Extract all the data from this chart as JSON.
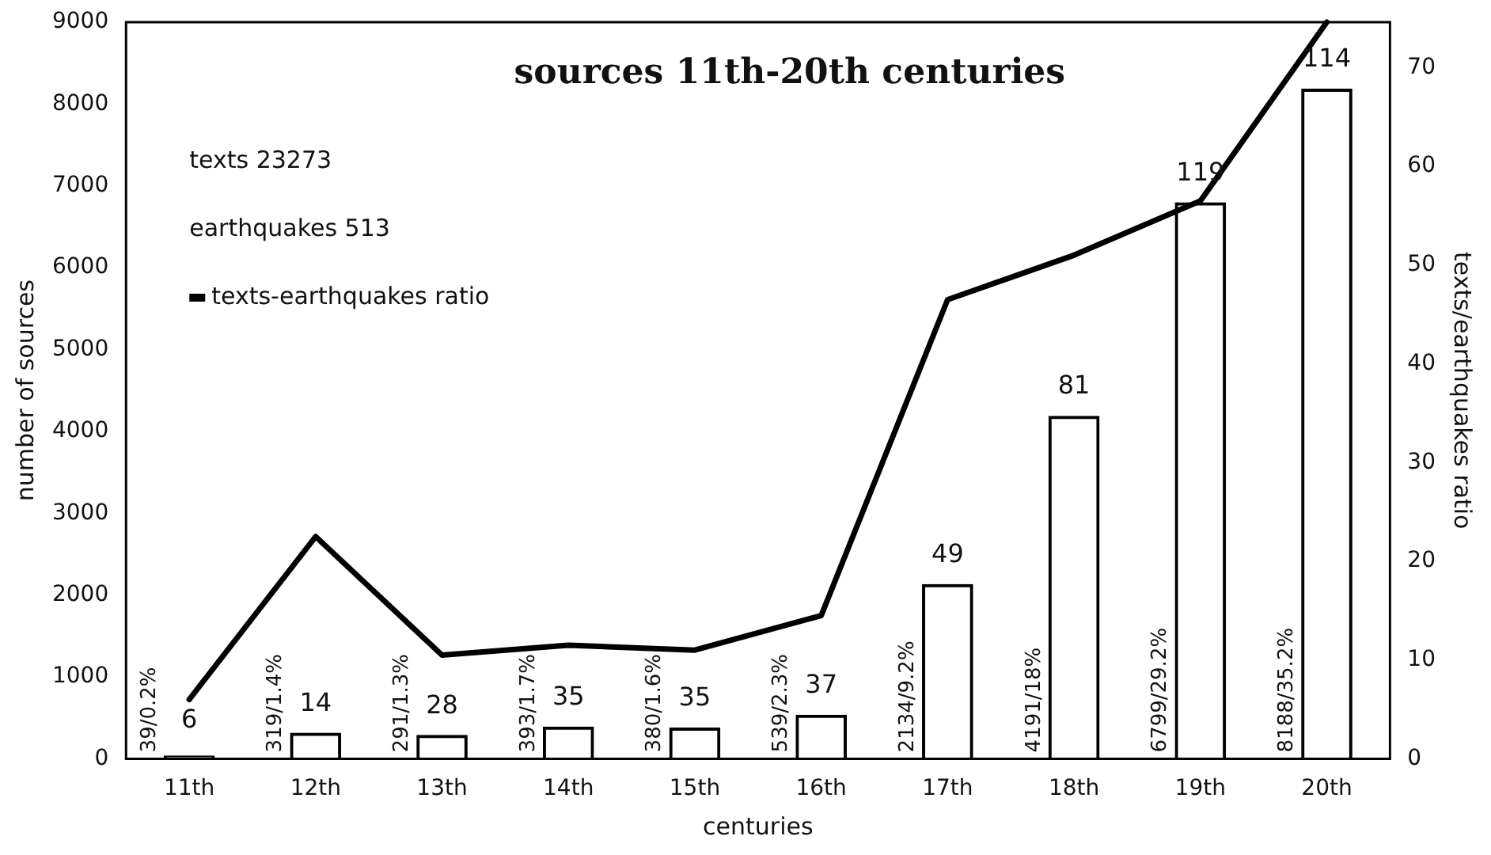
{
  "chart_data": {
    "type": "bar",
    "title": "sources 11th-20th centuries",
    "xlabel": "centuries",
    "ylabel": "number of sources",
    "y2label": "texts/earthquakes ratio",
    "categories": [
      "11th",
      "12th",
      "13th",
      "14th",
      "15th",
      "16th",
      "17th",
      "18th",
      "19th",
      "20th"
    ],
    "series": [
      {
        "color": "#000000",
        "values": [
          39,
          319,
          291,
          393,
          380,
          539,
          2134,
          4191,
          6799,
          8188
        ],
        "value_labels": [
          "39/0.2%",
          "319/1.4%",
          "291/1.3%",
          "393/1.7%",
          "380/1.6%",
          "539/2.3%",
          "2134/9.2%",
          "4191/18%",
          "6799/29.2%",
          "8188/35.2%"
        ]
      },
      {
        "type": "line",
        "name": "texts-earthquakes ratio",
        "axis": "y2",
        "color": "#000000",
        "values": [
          6,
          22.5,
          10.5,
          11.5,
          11,
          14.5,
          46.5,
          51,
          56.5,
          74.6
        ]
      }
    ],
    "ylim": [
      0,
      9000
    ],
    "yticks": [
      0,
      1000,
      2000,
      3000,
      4000,
      5000,
      6000,
      7000,
      8000,
      9000
    ],
    "y2lim": [
      0,
      74.6
    ],
    "y2ticks": [
      0,
      10,
      20,
      30,
      40,
      50,
      60,
      70
    ],
    "grid": false,
    "legend": "top left",
    "marker": "none",
    "line_style": "solid",
    "annotations": [
      "texts 23273",
      "earthquakes 513",
      {
        "text": "6",
        "x": "11th",
        "y": 39
      },
      {
        "text": "14",
        "x": "12th",
        "y": 319
      },
      {
        "text": "28",
        "x": "13th",
        "y": 291
      },
      {
        "text": "35",
        "x": "14th",
        "y": 393
      },
      {
        "text": "35",
        "x": "15th",
        "y": 380
      },
      {
        "text": "37",
        "x": "16th",
        "y": 539
      },
      {
        "text": "49",
        "x": "17th",
        "y": 2134
      },
      {
        "text": "81",
        "x": "18th",
        "y": 4191
      },
      {
        "text": "119",
        "x": "19th",
        "y": 6799
      },
      {
        "text": "114",
        "x": "20th",
        "y": 8188
      }
    ]
  }
}
